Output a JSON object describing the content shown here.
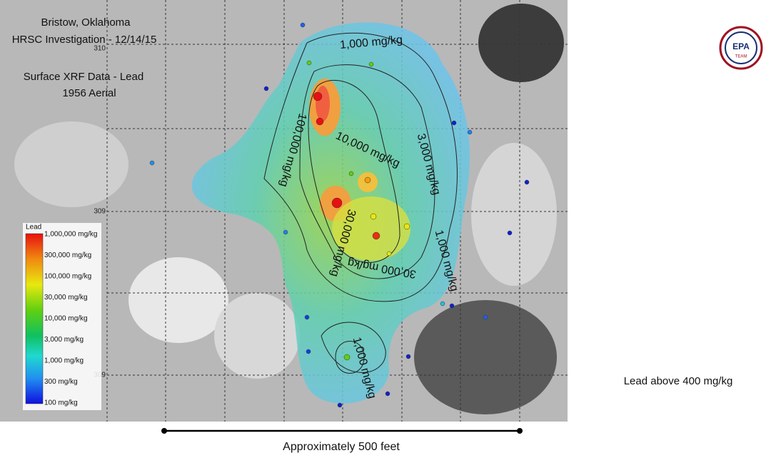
{
  "header": {
    "location": "Bristow, Oklahoma",
    "investigation": "HRSC Investigation - 12/14/15",
    "dataset": "Surface XRF Data - Lead",
    "basemap": "1956 Aerial"
  },
  "legend": {
    "title": "Lead",
    "entries": [
      "1,000,000 mg/kg",
      "300,000 mg/kg",
      "100,000 mg/kg",
      "30,000 mg/kg",
      "10,000 mg/kg",
      "3,000 mg/kg",
      "1,000 mg/kg",
      "300 mg/kg",
      "100 mg/kg"
    ]
  },
  "grid_labels": [
    "310",
    "309",
    "309"
  ],
  "contour_labels": [
    "1,000 mg/kg",
    "10,000 mg/kg",
    "3,000 mg/kg",
    "100,000 mg/kg",
    "30,000 mg/kg",
    "1,000 mg/kg",
    "1,000 mg/kg",
    "30,000 mg/kg"
  ],
  "logo": {
    "agency": "EPA",
    "team": "TEAM"
  },
  "note": "Lead above 400 mg/kg",
  "scale": "Approximately 500 feet"
}
